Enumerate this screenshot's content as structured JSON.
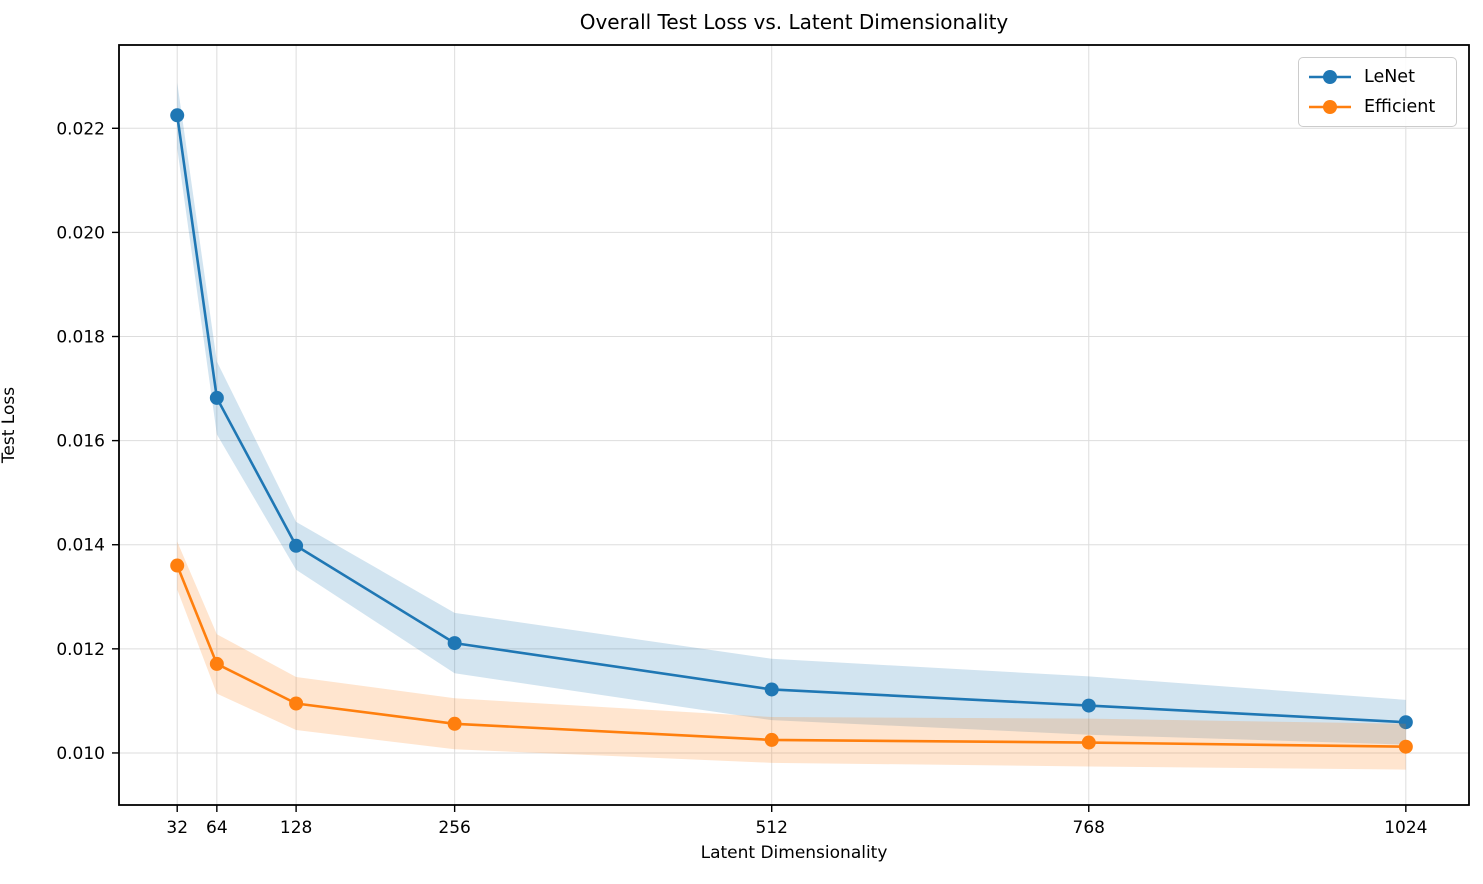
{
  "chart_data": {
    "type": "line",
    "title": "Overall Test Loss vs. Latent Dimensionality",
    "xlabel": "Latent Dimensionality",
    "ylabel": "Test Loss",
    "x": [
      32,
      64,
      128,
      256,
      512,
      768,
      1024
    ],
    "xtick_labels": [
      "32",
      "64",
      "128",
      "256",
      "512",
      "768",
      "1024"
    ],
    "ytick_values": [
      0.01,
      0.012,
      0.014,
      0.016,
      0.018,
      0.02,
      0.022
    ],
    "ytick_labels": [
      "0.010",
      "0.012",
      "0.014",
      "0.016",
      "0.018",
      "0.020",
      "0.022"
    ],
    "xlim": [
      -15,
      1075
    ],
    "ylim": [
      0.009,
      0.0236
    ],
    "grid": true,
    "legend_position": "upper right",
    "series": [
      {
        "name": "LeNet",
        "color": "#1f77b4",
        "band_alpha": 0.2,
        "values": [
          0.02225,
          0.01682,
          0.01398,
          0.01211,
          0.01122,
          0.01091,
          0.01059
        ],
        "band_low": [
          0.02162,
          0.01612,
          0.01352,
          0.01153,
          0.01063,
          0.01035,
          0.01016
        ],
        "band_high": [
          0.02288,
          0.01752,
          0.01444,
          0.01269,
          0.01181,
          0.01147,
          0.01102
        ]
      },
      {
        "name": "Efficient",
        "color": "#ff7f0e",
        "band_alpha": 0.2,
        "values": [
          0.0136,
          0.01171,
          0.01095,
          0.01056,
          0.01025,
          0.0102,
          0.01012
        ],
        "band_low": [
          0.01314,
          0.01114,
          0.01044,
          0.01007,
          0.00981,
          0.00974,
          0.00968
        ],
        "band_high": [
          0.01406,
          0.01228,
          0.01146,
          0.01105,
          0.01069,
          0.01066,
          0.01056
        ]
      }
    ]
  }
}
